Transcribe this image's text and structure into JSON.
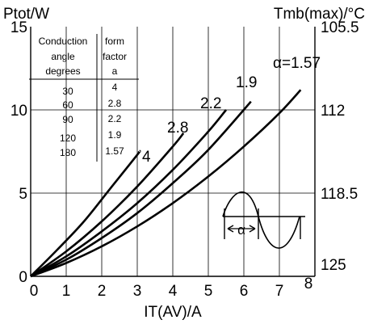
{
  "chart_data": {
    "type": "line",
    "y_left_title": "Ptot/W",
    "y_right_title": "Tmb(max)/°C",
    "xlabel": "IT(AV)/A",
    "xlim": [
      0,
      8
    ],
    "ylim": [
      0,
      15
    ],
    "x_ticks": [
      "0",
      "1",
      "2",
      "3",
      "4",
      "5",
      "6",
      "7",
      "8"
    ],
    "y_ticks": [
      "0",
      "5",
      "10",
      "15"
    ],
    "y_right_ticks": [
      "105.5",
      "112",
      "118.5",
      "125"
    ],
    "grid": true,
    "table": {
      "col1_header": [
        "Conduction",
        "angle",
        "degrees"
      ],
      "col2_header": [
        "form",
        "factor",
        "a"
      ],
      "rows": [
        [
          "30",
          "4"
        ],
        [
          "60",
          "2.8"
        ],
        [
          "90",
          "2.2"
        ],
        [
          "120",
          "1.9"
        ],
        [
          "180",
          "1.57"
        ]
      ]
    },
    "series": [
      {
        "name": "4",
        "label": "4",
        "x": [
          0,
          0.75,
          1.5,
          2.25,
          3.0,
          3.05
        ],
        "y": [
          0,
          1.6,
          3.3,
          5.3,
          7.3,
          7.5
        ]
      },
      {
        "name": "2.8",
        "label": "2.8",
        "x": [
          0,
          1.0,
          2.0,
          3.0,
          4.0,
          4.3
        ],
        "y": [
          0,
          1.5,
          3.3,
          5.4,
          7.8,
          8.6
        ]
      },
      {
        "name": "2.2",
        "label": "2.2",
        "x": [
          0,
          1.0,
          2.0,
          3.0,
          4.0,
          5.0,
          5.5
        ],
        "y": [
          0,
          1.2,
          2.7,
          4.4,
          6.4,
          8.7,
          10.0
        ]
      },
      {
        "name": "1.9",
        "label": "1.9",
        "x": [
          0,
          1.0,
          2.0,
          3.0,
          4.0,
          5.0,
          6.2
        ],
        "y": [
          0,
          1.0,
          2.3,
          3.8,
          5.6,
          7.6,
          10.5
        ]
      },
      {
        "name": "α=1.57",
        "label": "α=1.57",
        "x": [
          0,
          1.0,
          2.0,
          3.0,
          4.0,
          5.0,
          6.0,
          7.0,
          7.6
        ],
        "y": [
          0,
          0.8,
          1.8,
          3.0,
          4.4,
          6.0,
          7.8,
          9.8,
          11.2
        ]
      }
    ],
    "inset_symbol": "α"
  }
}
